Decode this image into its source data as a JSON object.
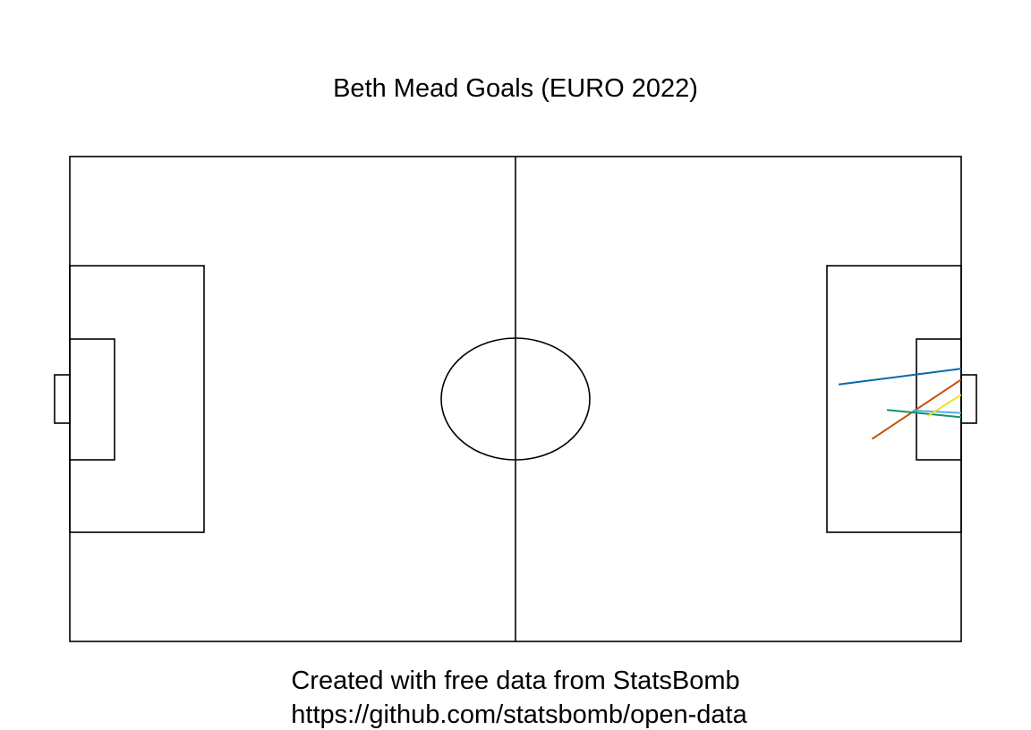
{
  "title": "Beth Mead Goals (EURO 2022)",
  "caption": {
    "line1": "Created with free data from StatsBomb",
    "line2": "https://github.com/statsbomb/open-data"
  },
  "chart_data": {
    "type": "scatter",
    "pitch": {
      "length": 120,
      "width": 80
    },
    "shots": [
      {
        "x": 103.5,
        "y": 37.6,
        "end_x": 120,
        "end_y": 35.0,
        "color": "#0868ac"
      },
      {
        "x": 108.0,
        "y": 46.6,
        "end_x": 120,
        "end_y": 36.8,
        "color": "#c84f07"
      },
      {
        "x": 110.0,
        "y": 41.8,
        "end_x": 120,
        "end_y": 43.0,
        "color": "#1a9068"
      },
      {
        "x": 113.5,
        "y": 41.9,
        "end_x": 120,
        "end_y": 42.3,
        "color": "#4fb0e6"
      },
      {
        "x": 115.5,
        "y": 42.8,
        "end_x": 120,
        "end_y": 39.3,
        "color": "#f0de2a"
      }
    ]
  }
}
